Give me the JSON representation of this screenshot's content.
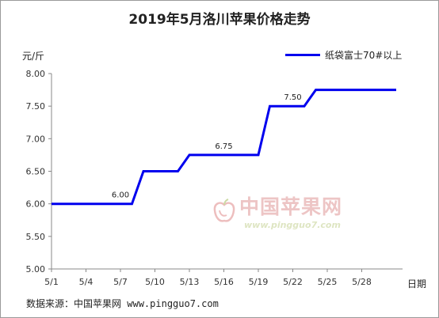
{
  "chart_data": {
    "type": "line",
    "title": "2019年5月洛川苹果价格走势",
    "ylabel": "元/斤",
    "xlabel": "日期",
    "ylim": [
      5.0,
      8.0
    ],
    "yticks": [
      5.0,
      5.5,
      6.0,
      6.5,
      7.0,
      7.5,
      8.0
    ],
    "ytick_labels": [
      "5.00",
      "5.50",
      "6.00",
      "6.50",
      "7.00",
      "7.50",
      "8.00"
    ],
    "xlim": [
      1,
      31
    ],
    "xticks": [
      1,
      4,
      7,
      10,
      13,
      16,
      19,
      22,
      25,
      28
    ],
    "xtick_labels": [
      "5/1",
      "5/4",
      "5/7",
      "5/10",
      "5/13",
      "5/16",
      "5/19",
      "5/22",
      "5/25",
      "5/28"
    ],
    "grid": false,
    "legend_position": "top-right",
    "series": [
      {
        "name": "纸袋富士70#以上",
        "color": "#0000ee",
        "x": [
          1,
          8,
          9,
          10,
          11,
          12,
          13,
          14,
          15,
          16,
          17,
          18,
          19,
          20,
          21,
          22,
          23,
          24,
          25,
          26,
          27,
          28,
          29,
          30,
          31
        ],
        "values": [
          6.0,
          6.0,
          6.5,
          6.5,
          6.5,
          6.5,
          6.75,
          6.75,
          6.75,
          6.75,
          6.75,
          6.75,
          6.75,
          7.5,
          7.5,
          7.5,
          7.5,
          7.75,
          7.75,
          7.75,
          7.75,
          7.75,
          7.75,
          7.75,
          7.75
        ]
      }
    ],
    "annotations": [
      {
        "x": 7,
        "y": 6.0,
        "text": "6.00"
      },
      {
        "x": 16,
        "y": 6.75,
        "text": "6.75"
      },
      {
        "x": 22,
        "y": 7.5,
        "text": "7.50"
      }
    ]
  },
  "source": {
    "label": "数据来源：",
    "text": "中国苹果网  www.pingguo7.com"
  },
  "watermark": {
    "text": "中国苹果网",
    "url": "www.pingguo7.com",
    "icon": "apple-logo-icon"
  }
}
